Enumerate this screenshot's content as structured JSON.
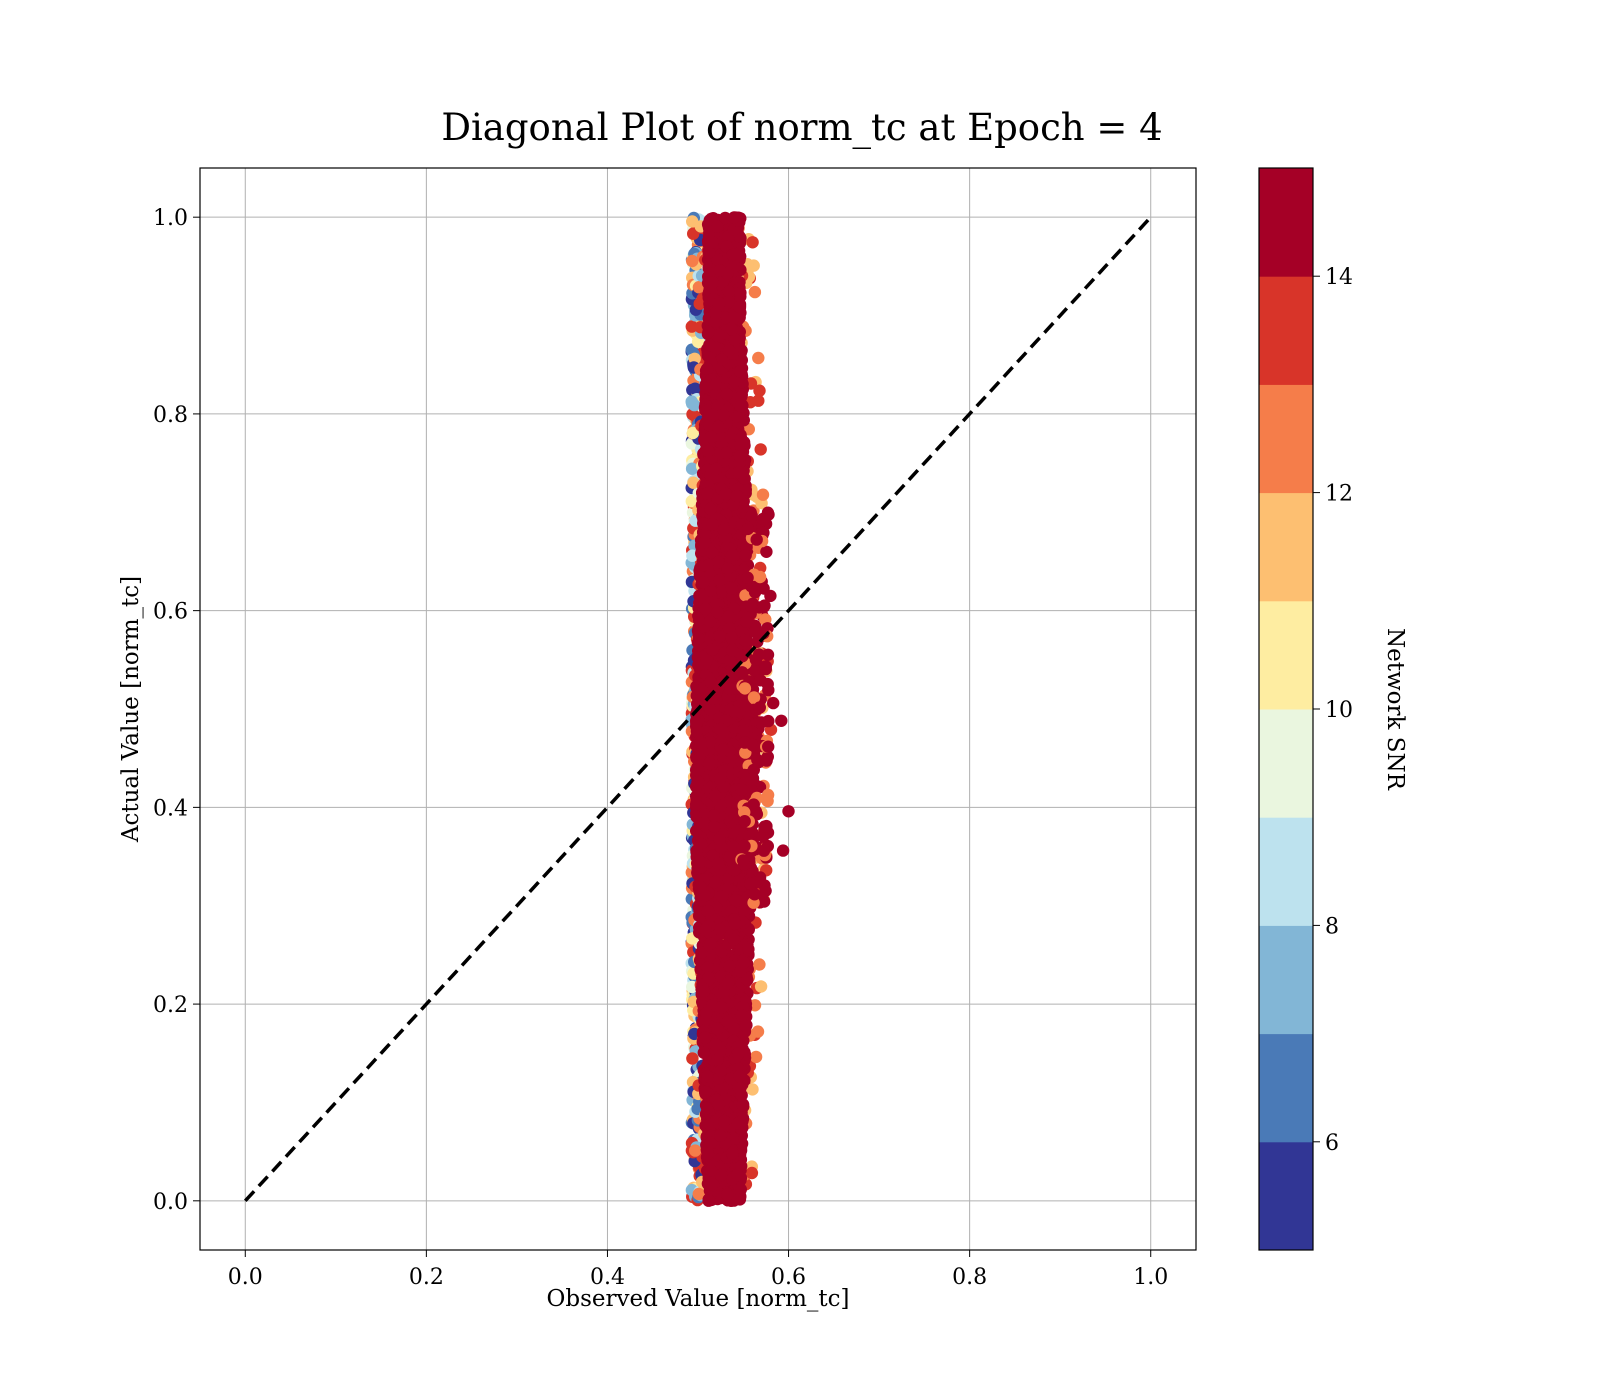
{
  "chart_data": {
    "type": "scatter",
    "title": "Diagonal Plot of norm_tc at Epoch = 4",
    "xlabel": "Observed Value [norm_tc]",
    "ylabel": "Actual Value [norm_tc]",
    "xlim": [
      -0.05,
      1.05
    ],
    "ylim": [
      -0.05,
      1.05
    ],
    "xticks": [
      "0.0",
      "0.2",
      "0.4",
      "0.6",
      "0.8",
      "1.0"
    ],
    "yticks": [
      "0.0",
      "0.2",
      "0.4",
      "0.6",
      "0.8",
      "1.0"
    ],
    "grid": true,
    "reference_line": {
      "style": "dashed",
      "color": "#000000",
      "from": [
        0.0,
        0.0
      ],
      "to": [
        1.0,
        1.0
      ]
    },
    "colorbar": {
      "label": "Network SNR",
      "range": [
        5,
        15
      ],
      "ticks": [
        "6",
        "8",
        "10",
        "12",
        "14"
      ],
      "levels": [
        {
          "from": 5,
          "to": 6,
          "color": "#313695"
        },
        {
          "from": 6,
          "to": 7,
          "color": "#4a7ab7"
        },
        {
          "from": 7,
          "to": 8,
          "color": "#82b6d6"
        },
        {
          "from": 8,
          "to": 9,
          "color": "#bde2ee"
        },
        {
          "from": 9,
          "to": 10,
          "color": "#eaf6df"
        },
        {
          "from": 10,
          "to": 11,
          "color": "#feeda1"
        },
        {
          "from": 11,
          "to": 12,
          "color": "#fdbf71"
        },
        {
          "from": 12,
          "to": 13,
          "color": "#f57d4a"
        },
        {
          "from": 13,
          "to": 14,
          "color": "#d83429"
        },
        {
          "from": 14,
          "to": 15,
          "color": "#a50026"
        }
      ]
    },
    "point_distribution": {
      "x_range": [
        0.49,
        0.6
      ],
      "x_center": 0.525,
      "y_range": [
        0.0,
        1.0
      ],
      "dominant_snr": 15,
      "outliers": [
        {
          "x": 0.6,
          "y": 0.396,
          "snr": 15
        },
        {
          "x": 0.594,
          "y": 0.356,
          "snr": 15
        },
        {
          "x": 0.592,
          "y": 0.488,
          "snr": 15
        },
        {
          "x": 0.583,
          "y": 0.506,
          "snr": 15
        },
        {
          "x": 0.58,
          "y": 0.615,
          "snr": 15
        }
      ]
    }
  }
}
